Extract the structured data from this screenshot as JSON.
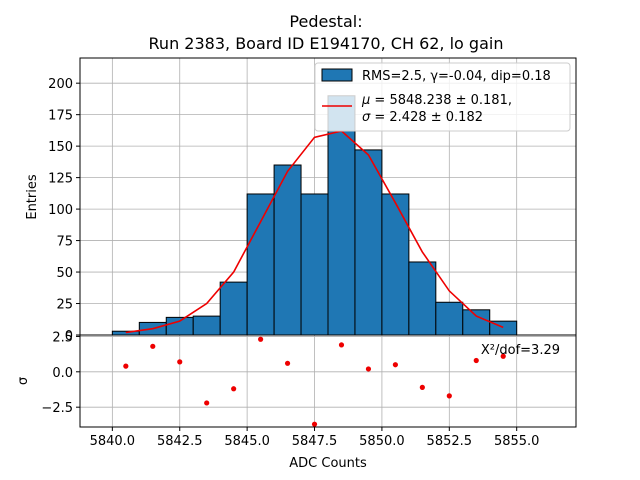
{
  "chart_data": {
    "title_line1": "Pedestal:",
    "title_line2": "Run 2383, Board ID E194170, CH 62, lo gain",
    "main": {
      "type": "bar",
      "ylabel": "Entries",
      "bin_edges": [
        5840,
        5841,
        5842,
        5843,
        5844,
        5845,
        5846,
        5847,
        5848,
        5849,
        5850,
        5851,
        5852,
        5853,
        5854,
        5855
      ],
      "values": [
        3,
        10,
        14,
        15,
        42,
        112,
        135,
        112,
        190,
        147,
        112,
        58,
        26,
        20,
        11
      ],
      "fit_x": [
        5840.5,
        5841.5,
        5842.5,
        5843.5,
        5844.5,
        5845.5,
        5846.5,
        5847.5,
        5848.5,
        5849.5,
        5850.5,
        5851.5,
        5852.5,
        5853.5,
        5854.5
      ],
      "fit_y": [
        2,
        5,
        11,
        25,
        50,
        90,
        130,
        157,
        162,
        143,
        105,
        66,
        35,
        15,
        6
      ],
      "xlim": [
        5838.8,
        5857.2
      ],
      "ylim": [
        0,
        220
      ],
      "yticks": [
        0,
        25,
        50,
        75,
        100,
        125,
        150,
        175,
        200
      ],
      "ytick_labels": [
        "0",
        "25",
        "50",
        "75",
        "100",
        "125",
        "150",
        "175",
        "200"
      ]
    },
    "legend": {
      "hist_label": "RMS=2.5, γ=-0.04, dip=0.18",
      "fit_label_mu_prefix": "μ",
      "fit_label_mu_value": " = 5848.238 ± 0.181,",
      "fit_label_sigma_prefix": "σ",
      "fit_label_sigma_value": " = 2.428 ± 0.182",
      "placement": "top-right"
    },
    "residual": {
      "type": "scatter",
      "ylabel": "σ",
      "xlabel": "ADC Counts",
      "x": [
        5840.5,
        5841.5,
        5842.5,
        5843.5,
        5844.5,
        5845.5,
        5846.5,
        5847.5,
        5848.5,
        5849.5,
        5850.5,
        5851.5,
        5852.5,
        5853.5,
        5854.5
      ],
      "y": [
        0.4,
        1.8,
        0.7,
        -2.2,
        -1.2,
        2.3,
        0.6,
        -3.7,
        1.9,
        0.2,
        0.5,
        -1.1,
        -1.7,
        0.8,
        1.1
      ],
      "ylim": [
        -3.9,
        2.6
      ],
      "yticks": [
        -2.5,
        0.0,
        2.5
      ],
      "ytick_labels": [
        "−2.5",
        "0.0",
        "2.5"
      ],
      "xticks": [
        5840,
        5842.5,
        5845,
        5847.5,
        5850,
        5852.5,
        5855
      ],
      "xtick_labels": [
        "5840.0",
        "5842.5",
        "5845.0",
        "5847.5",
        "5850.0",
        "5852.5",
        "5855.0"
      ],
      "annotation": "X²/dof=3.29"
    }
  }
}
